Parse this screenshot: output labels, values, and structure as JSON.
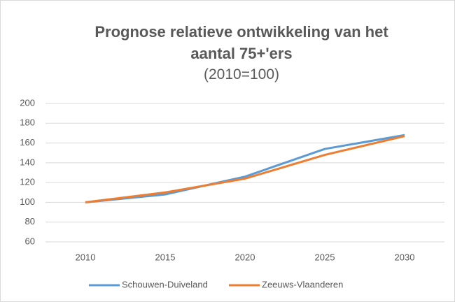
{
  "chart_data": {
    "type": "line",
    "title": "Prognose relatieve ontwikkeling van het aantal 75+'ers",
    "subtitle": "(2010=100)",
    "categories": [
      "2010",
      "2015",
      "2020",
      "2025",
      "2030"
    ],
    "series": [
      {
        "name": "Schouwen-Duiveland",
        "color": "#5b9bd5",
        "values": [
          100,
          108,
          126,
          154,
          168
        ]
      },
      {
        "name": "Zeeuws-Vlaanderen",
        "color": "#ed7d31",
        "values": [
          100,
          110,
          124,
          148,
          167
        ]
      }
    ],
    "ylim": [
      60,
      200
    ],
    "yticks": [
      60,
      80,
      100,
      120,
      140,
      160,
      180,
      200
    ],
    "grid": true,
    "legend": "bottom"
  }
}
